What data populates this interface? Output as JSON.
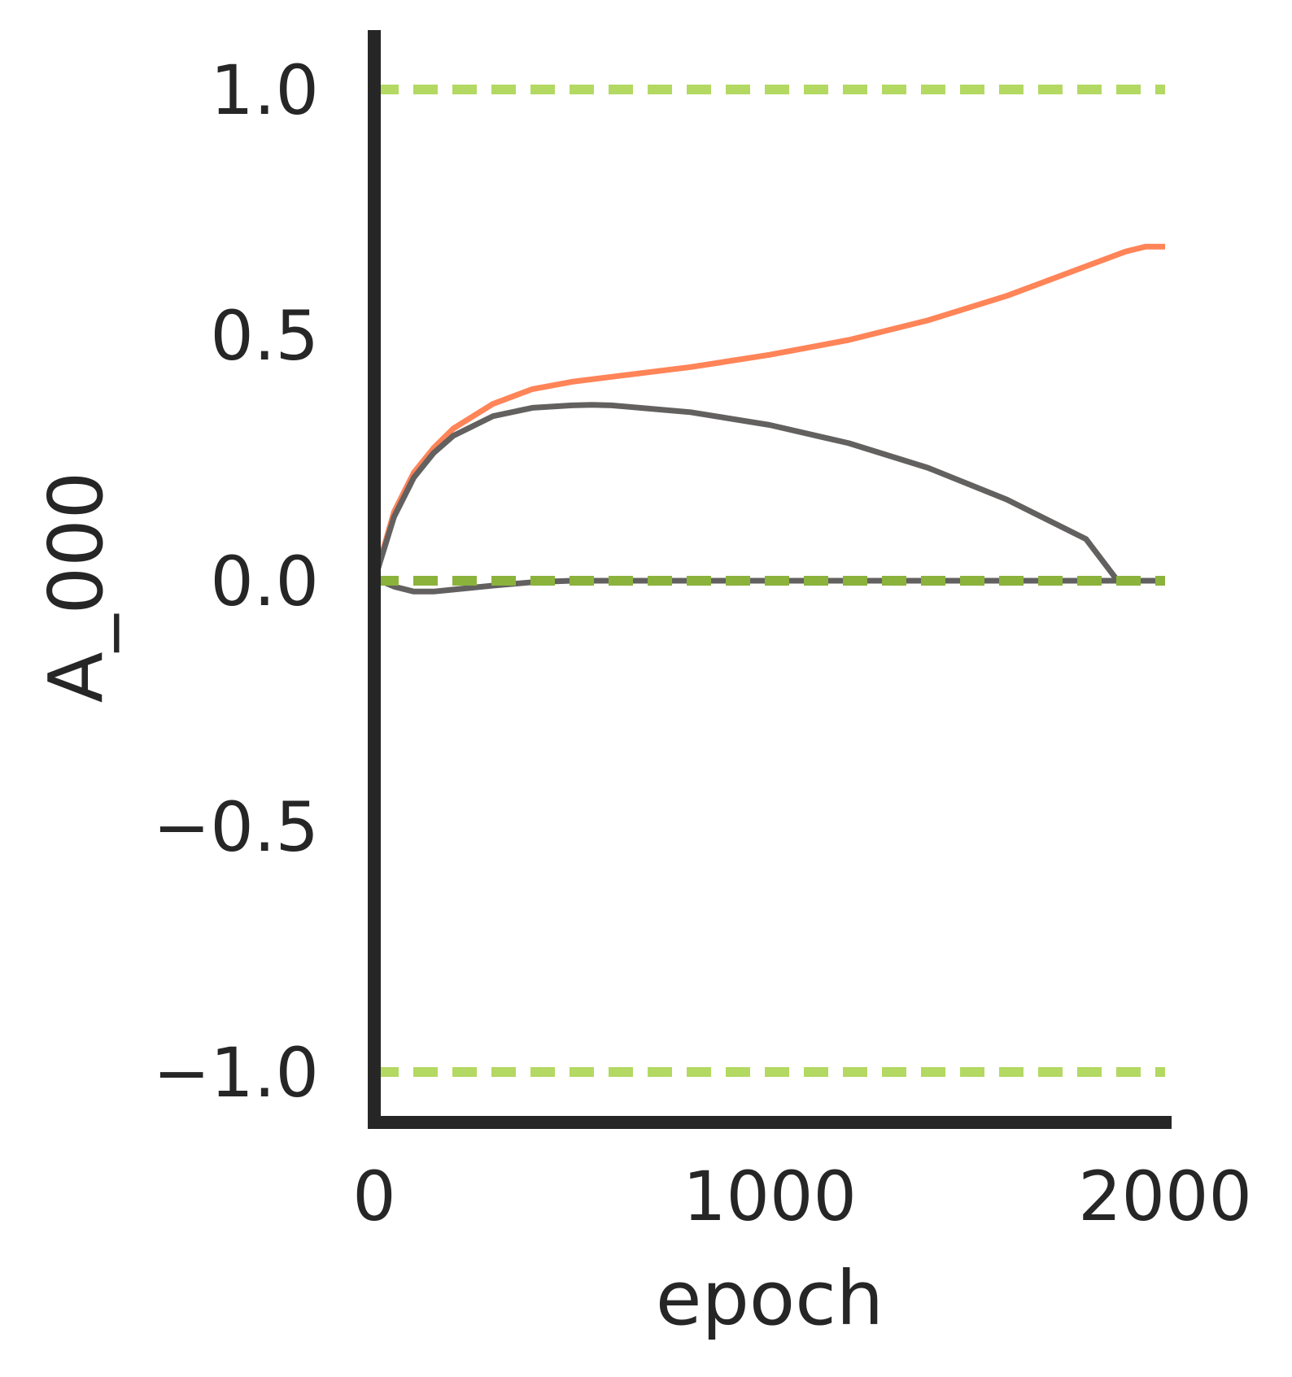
{
  "chart_data": {
    "type": "line",
    "title": "",
    "xlabel": "epoch",
    "ylabel": "A_000",
    "xlim": [
      0,
      2000
    ],
    "ylim": [
      -1.1,
      1.1
    ],
    "xticks": [
      0,
      1000,
      2000
    ],
    "xtick_labels": [
      "0",
      "1000",
      "2000"
    ],
    "yticks": [
      -1.0,
      -0.5,
      0.0,
      0.5,
      1.0
    ],
    "ytick_labels": [
      "−1.0",
      "−0.5",
      "0.0",
      "0.5",
      "1.0"
    ],
    "grid": false,
    "series": [
      {
        "color": "#ff8458",
        "style": "solid",
        "x": [
          0,
          50,
          100,
          150,
          200,
          300,
          400,
          500,
          600,
          800,
          1000,
          1200,
          1400,
          1600,
          1800,
          1900,
          1950,
          2000
        ],
        "y": [
          0.0,
          0.14,
          0.22,
          0.27,
          0.31,
          0.36,
          0.39,
          0.405,
          0.415,
          0.435,
          0.46,
          0.49,
          0.53,
          0.58,
          0.64,
          0.67,
          0.68,
          0.68
        ]
      },
      {
        "color": "#636060",
        "style": "solid",
        "x": [
          0,
          50,
          100,
          150,
          200,
          300,
          400,
          500,
          550,
          600,
          800,
          1000,
          1200,
          1400,
          1600,
          1800,
          1880,
          2000
        ],
        "y": [
          0.0,
          0.13,
          0.21,
          0.26,
          0.295,
          0.335,
          0.352,
          0.357,
          0.358,
          0.357,
          0.343,
          0.317,
          0.28,
          0.23,
          0.165,
          0.085,
          0.0,
          0.0
        ]
      },
      {
        "color": "#636060",
        "style": "solid",
        "x": [
          0,
          50,
          100,
          150,
          200,
          300,
          400,
          500,
          2000
        ],
        "y": [
          0.005,
          -0.012,
          -0.022,
          -0.022,
          -0.018,
          -0.01,
          -0.003,
          0.0,
          0.0
        ]
      },
      {
        "color": "#636060",
        "style": "dashed",
        "x": [
          0,
          2000
        ],
        "y": [
          0.0,
          0.0
        ]
      },
      {
        "color": "#8bb33c",
        "style": "dashed",
        "x": [
          0,
          2000
        ],
        "y": [
          0.0,
          0.0
        ]
      },
      {
        "color": "#b3d963",
        "style": "dashed",
        "x": [
          0,
          2000
        ],
        "y": [
          1.0,
          1.0
        ]
      },
      {
        "color": "#b3d963",
        "style": "dashed",
        "x": [
          0,
          2000
        ],
        "y": [
          -1.0,
          -1.0
        ]
      }
    ]
  }
}
